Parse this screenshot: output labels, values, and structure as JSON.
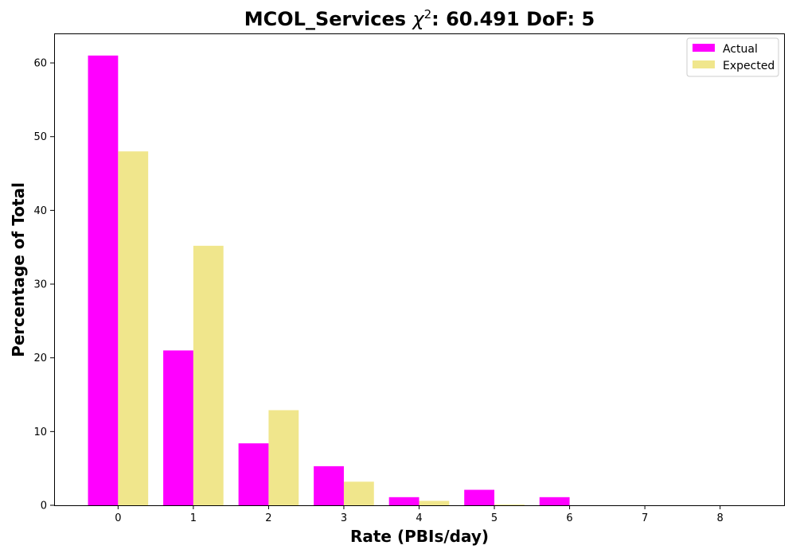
{
  "chart_data": {
    "type": "bar",
    "title": {
      "prefix": "MCOL_Services ",
      "chi_symbol": "χ",
      "chi_exponent": "2",
      "suffix": ": 60.491 DoF: 5"
    },
    "xlabel": "Rate (PBIs/day)",
    "ylabel": "Percentage of Total",
    "x": [
      0,
      1,
      2,
      3,
      4,
      5,
      6,
      7,
      8
    ],
    "x_tick_labels": [
      "0",
      "1",
      "2",
      "3",
      "4",
      "5",
      "6",
      "7",
      "8"
    ],
    "y_tick_labels": [
      "0",
      "10",
      "20",
      "30",
      "40",
      "50",
      "60"
    ],
    "y_ticks": [
      0,
      10,
      20,
      30,
      40,
      50,
      60
    ],
    "xlim": [
      -0.85,
      8.85
    ],
    "ylim": [
      0,
      64
    ],
    "series": [
      {
        "name": "Actual",
        "color": "#ff00ff",
        "values": [
          61.0,
          21.0,
          8.4,
          5.3,
          1.1,
          2.1,
          1.1,
          0,
          0
        ]
      },
      {
        "name": "Expected",
        "color": "#f0e68c",
        "values": [
          48.0,
          35.2,
          12.9,
          3.2,
          0.6,
          0.1,
          0,
          0,
          0
        ]
      }
    ],
    "legend_position": "top-right",
    "grid": false
  }
}
